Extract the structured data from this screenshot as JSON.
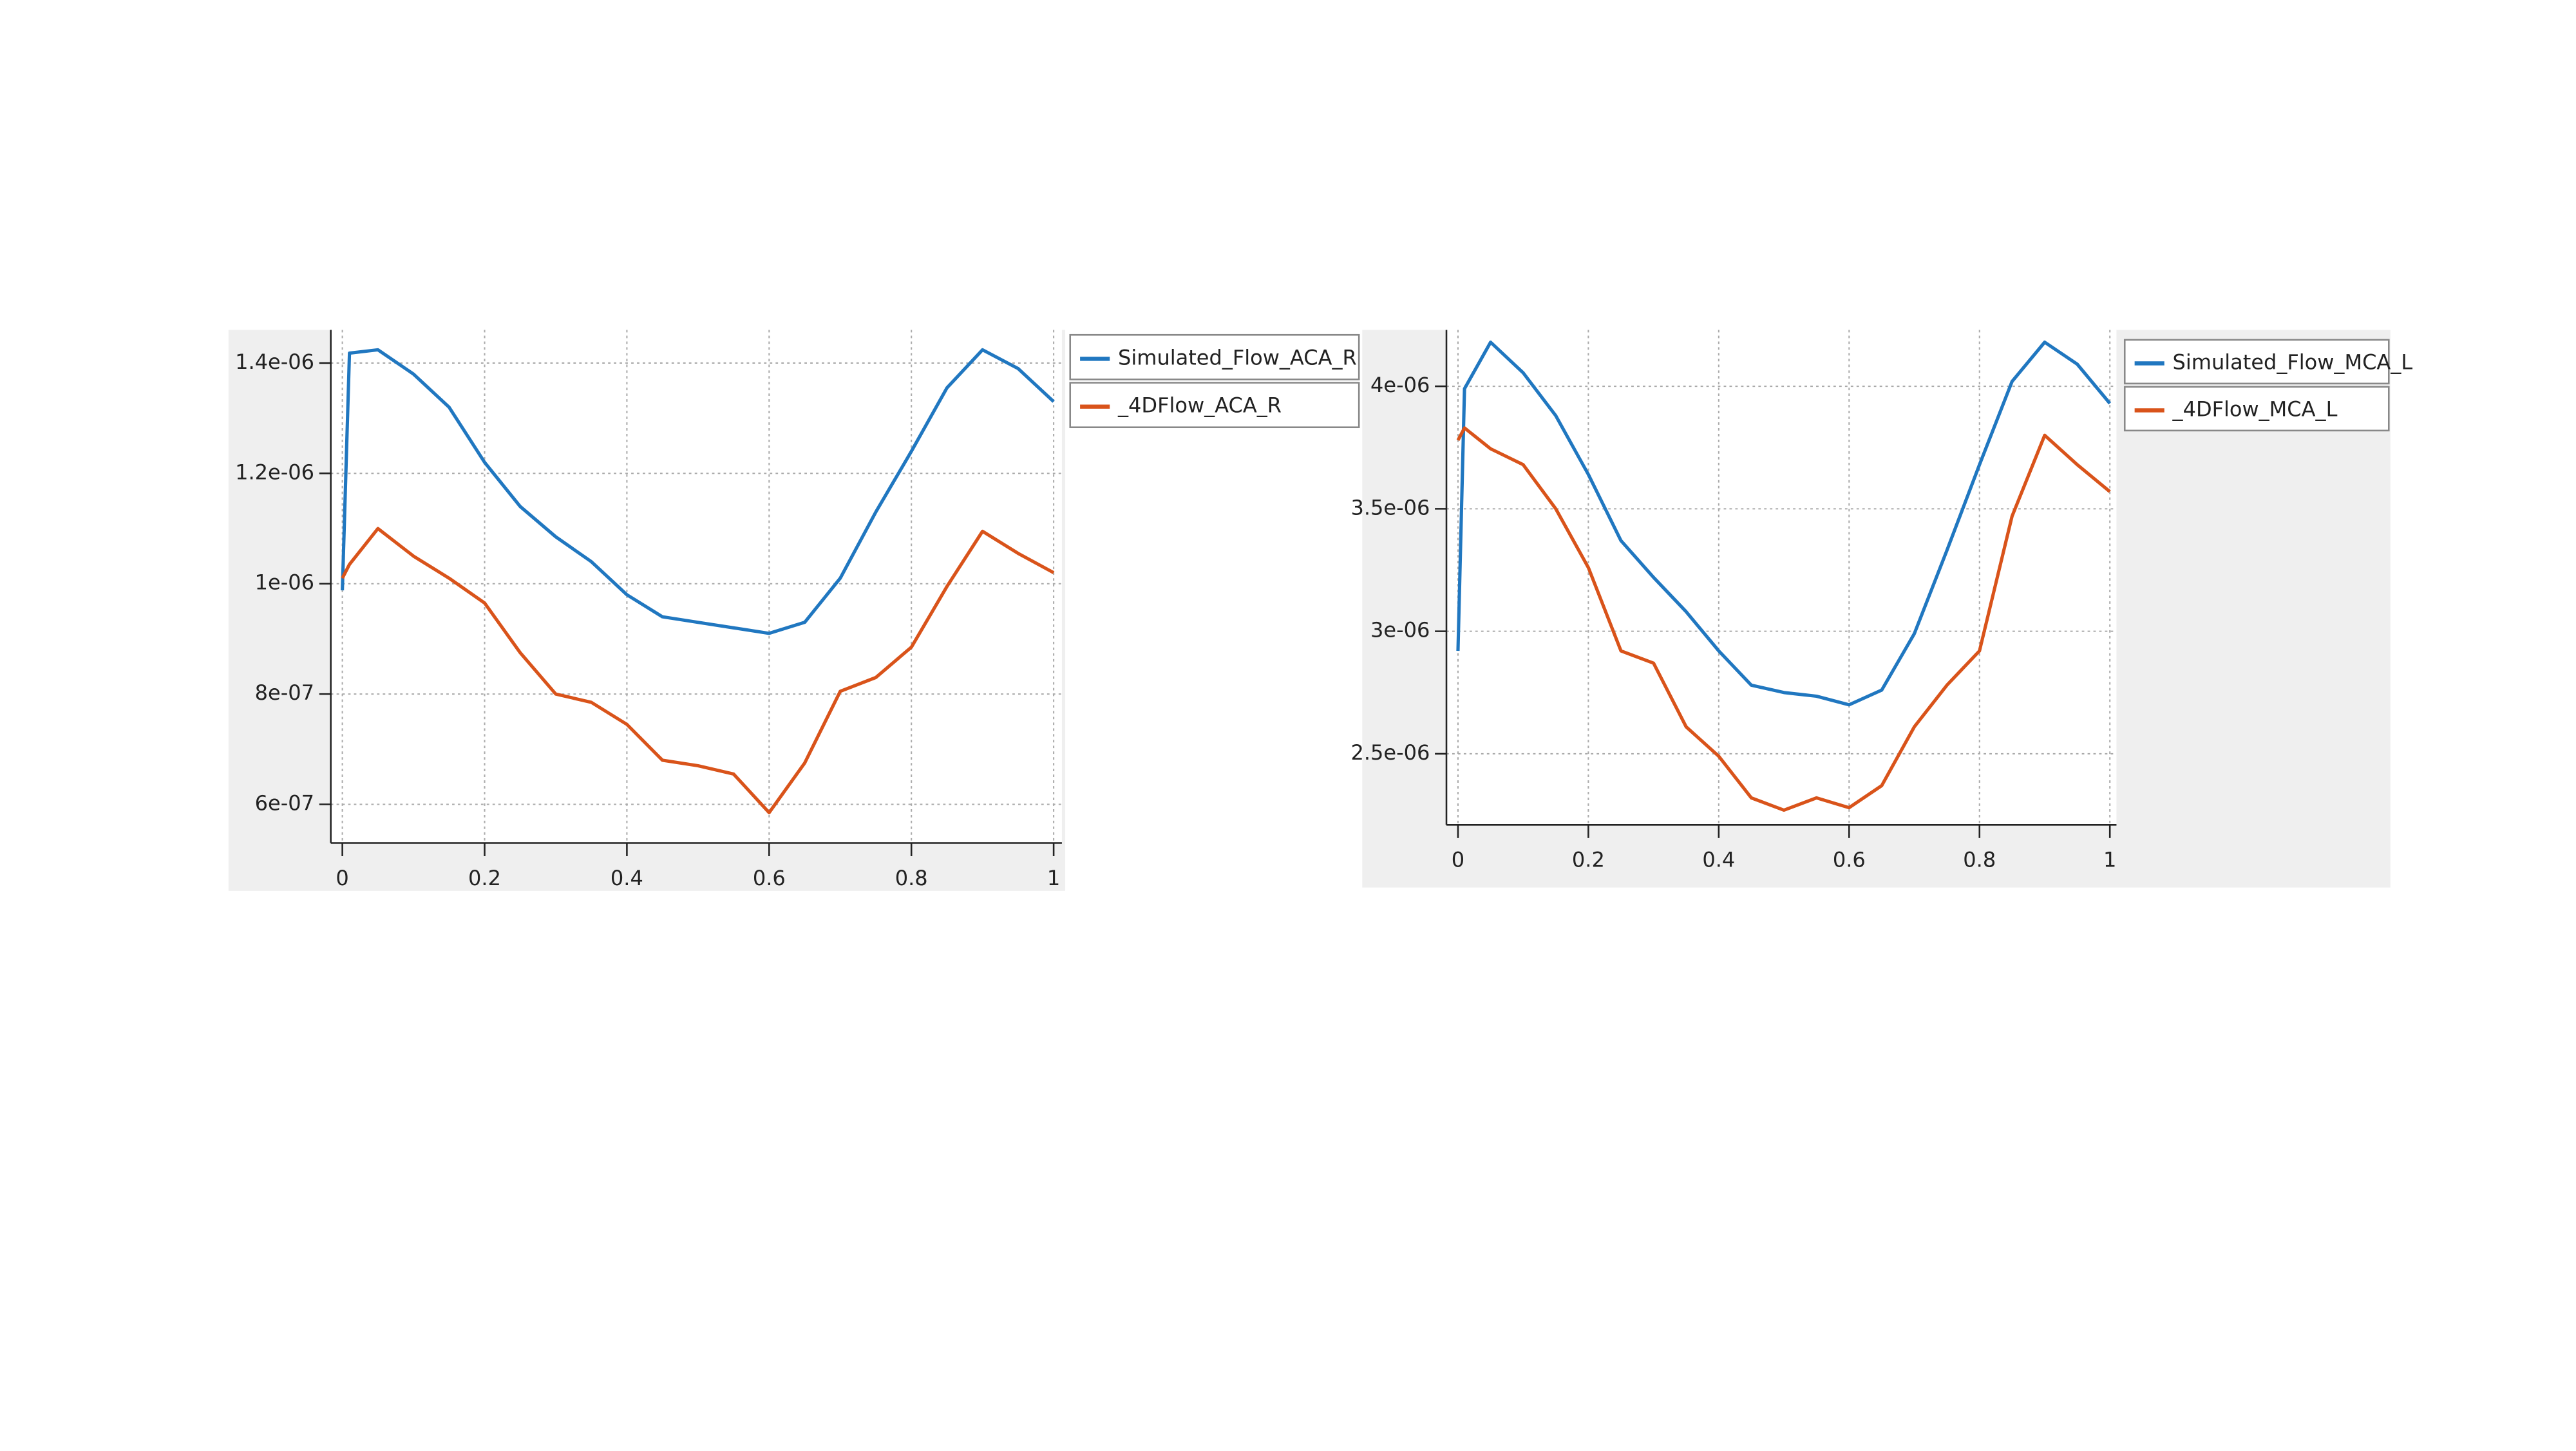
{
  "chart_data": [
    {
      "type": "line",
      "x": [
        0,
        0.01,
        0.05,
        0.1,
        0.15,
        0.2,
        0.25,
        0.3,
        0.35,
        0.4,
        0.45,
        0.5,
        0.55,
        0.6,
        0.65,
        0.7,
        0.75,
        0.8,
        0.85,
        0.9,
        0.95,
        1
      ],
      "xlim": [
        0,
        1
      ],
      "xticks": [
        0,
        0.2,
        0.4,
        0.6,
        0.8,
        1
      ],
      "ylim": [
        5.3e-07,
        1.46e-06
      ],
      "yticks": [
        {
          "value": 6e-07,
          "label": "6e-07"
        },
        {
          "value": 8e-07,
          "label": "8e-07"
        },
        {
          "value": 1e-06,
          "label": "1e-06"
        },
        {
          "value": 1.2e-06,
          "label": "1.2e-06"
        },
        {
          "value": 1.4e-06,
          "label": "1.4e-06"
        }
      ],
      "grid": true,
      "series": [
        {
          "name": "Simulated_Flow_ACA_R",
          "color": "#2077c0",
          "values": [
            9.88e-07,
            1.418e-06,
            1.424e-06,
            1.38e-06,
            1.32e-06,
            1.22e-06,
            1.14e-06,
            1.085e-06,
            1.04e-06,
            9.8e-07,
            9.4e-07,
            9.3e-07,
            9.2e-07,
            9.1e-07,
            9.3e-07,
            1.01e-06,
            1.13e-06,
            1.24e-06,
            1.355e-06,
            1.424e-06,
            1.39e-06,
            1.33e-06
          ]
        },
        {
          "name": "_4DFlow_ACA_R",
          "color": "#d9531a",
          "values": [
            1.01e-06,
            1.035e-06,
            1.1e-06,
            1.05e-06,
            1.01e-06,
            9.65e-07,
            8.75e-07,
            8e-07,
            7.85e-07,
            7.45e-07,
            6.8e-07,
            6.7e-07,
            6.55e-07,
            5.85e-07,
            6.75e-07,
            8.05e-07,
            8.3e-07,
            8.85e-07,
            9.95e-07,
            1.095e-06,
            1.055e-06,
            1.02e-06
          ]
        }
      ]
    },
    {
      "type": "line",
      "x": [
        0,
        0.01,
        0.05,
        0.1,
        0.15,
        0.2,
        0.25,
        0.3,
        0.35,
        0.4,
        0.45,
        0.5,
        0.55,
        0.6,
        0.65,
        0.7,
        0.75,
        0.8,
        0.85,
        0.9,
        0.95,
        1
      ],
      "xlim": [
        0,
        1
      ],
      "xticks": [
        0,
        0.2,
        0.4,
        0.6,
        0.8,
        1
      ],
      "ylim": [
        2.21e-06,
        4.23e-06
      ],
      "yticks": [
        {
          "value": 2.5e-06,
          "label": "2.5e-06"
        },
        {
          "value": 3e-06,
          "label": "3e-06"
        },
        {
          "value": 3.5e-06,
          "label": "3.5e-06"
        },
        {
          "value": 4e-06,
          "label": "4e-06"
        }
      ],
      "grid": true,
      "series": [
        {
          "name": "Simulated_Flow_MCA_L",
          "color": "#2077c0",
          "values": [
            2.92e-06,
            3.99e-06,
            4.18e-06,
            4.055e-06,
            3.88e-06,
            3.64e-06,
            3.37e-06,
            3.22e-06,
            3.08e-06,
            2.92e-06,
            2.78e-06,
            2.75e-06,
            2.735e-06,
            2.7e-06,
            2.76e-06,
            2.99e-06,
            3.33e-06,
            3.68e-06,
            4.02e-06,
            4.18e-06,
            4.09e-06,
            3.93e-06
          ]
        },
        {
          "name": "_4DFlow_MCA_L",
          "color": "#d9531a",
          "values": [
            3.78e-06,
            3.83e-06,
            3.745e-06,
            3.68e-06,
            3.5e-06,
            3.26e-06,
            2.92e-06,
            2.87e-06,
            2.61e-06,
            2.49e-06,
            2.32e-06,
            2.27e-06,
            2.32e-06,
            2.28e-06,
            2.37e-06,
            2.61e-06,
            2.78e-06,
            2.92e-06,
            3.47e-06,
            3.8e-06,
            3.68e-06,
            3.57e-06
          ]
        }
      ]
    }
  ]
}
